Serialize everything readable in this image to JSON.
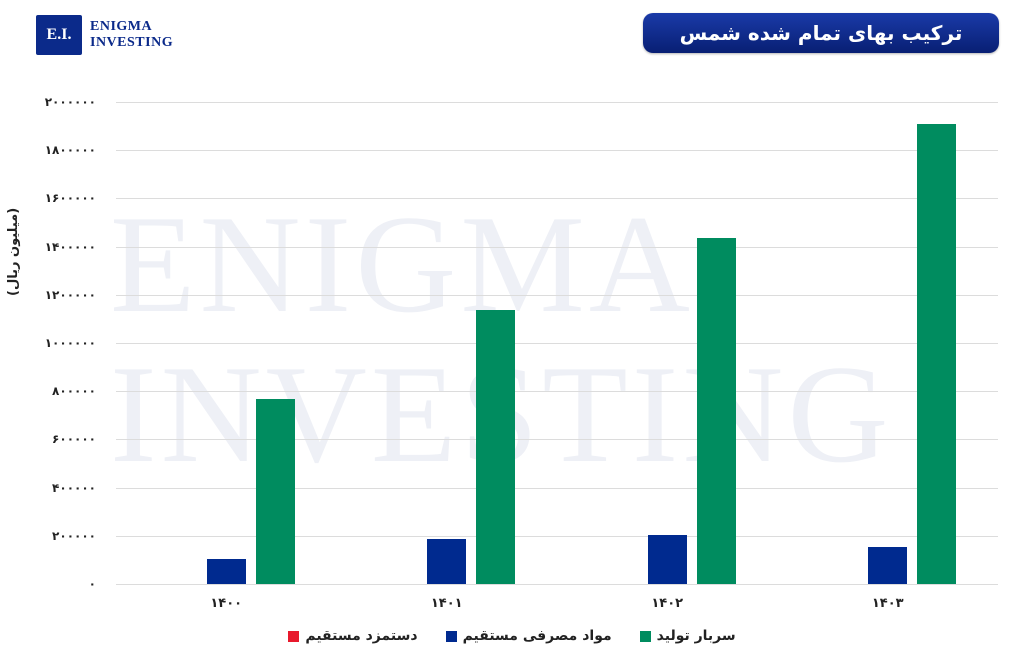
{
  "logo": {
    "mark": "E.I.",
    "line1": "ENIGMA",
    "line2": "INVESTING"
  },
  "title": "ترکیب بهای تمام شده شمس",
  "watermark": {
    "line1": "ENIGMA",
    "line2": "INVESTING"
  },
  "colors": {
    "direct_labor": "#e8192c",
    "direct_materials": "#002a8f",
    "overhead": "#008c5f",
    "title_bg": "#0b2a8a"
  },
  "chart_data": {
    "type": "bar",
    "title": "ترکیب بهای تمام شده شمس",
    "xlabel": "",
    "ylabel": "(میلیون ریال)",
    "ylim": [
      0,
      2000000
    ],
    "y_ticks": [
      0,
      200000,
      400000,
      600000,
      800000,
      1000000,
      1200000,
      1400000,
      1600000,
      1800000,
      2000000
    ],
    "y_tick_labels": [
      "۰",
      "۲۰۰۰۰۰",
      "۴۰۰۰۰۰",
      "۶۰۰۰۰۰",
      "۸۰۰۰۰۰",
      "۱۰۰۰۰۰۰",
      "۱۲۰۰۰۰۰",
      "۱۴۰۰۰۰۰",
      "۱۶۰۰۰۰۰",
      "۱۸۰۰۰۰۰",
      "۲۰۰۰۰۰۰"
    ],
    "categories": [
      "۱۴۰۰",
      "۱۴۰۱",
      "۱۴۰۲",
      "۱۴۰۳"
    ],
    "grid": true,
    "legend_position": "bottom",
    "series": [
      {
        "name": "دستمزد مستقیم",
        "color": "#e8192c",
        "values": [
          0,
          0,
          0,
          0
        ]
      },
      {
        "name": "مواد مصرفی مستقیم",
        "color": "#002a8f",
        "values": [
          104000,
          187000,
          203000,
          154000
        ]
      },
      {
        "name": "سربار تولید",
        "color": "#008c5f",
        "values": [
          768000,
          1137000,
          1436000,
          1909000
        ]
      }
    ]
  }
}
